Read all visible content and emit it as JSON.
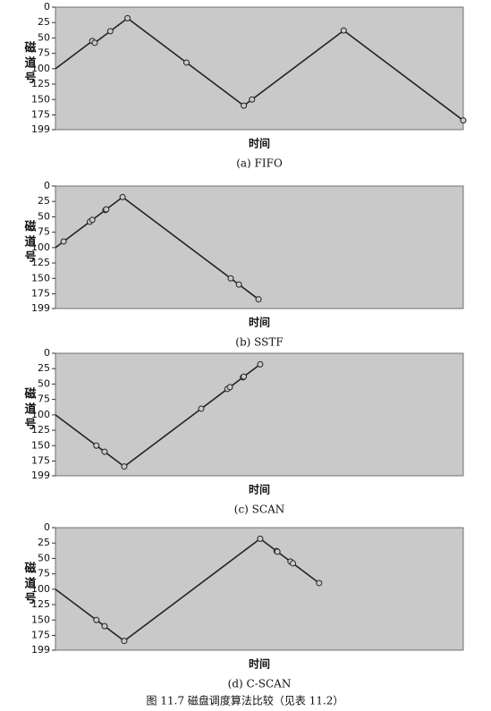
{
  "chart_data": [
    {
      "type": "line",
      "title": "(a) FIFO",
      "x_label": "时间",
      "y_label": "磁道号",
      "x": [
        0,
        45,
        48,
        67,
        88,
        160,
        230,
        240,
        352,
        498
      ],
      "values": [
        100,
        55,
        58,
        39,
        18,
        90,
        160,
        150,
        38,
        184
      ],
      "xlim": [
        0,
        498
      ],
      "ylim": [
        0,
        199
      ],
      "y_reversed": true,
      "color": "#222",
      "yticks": [
        0,
        25,
        50,
        75,
        100,
        125,
        150,
        175,
        199
      ]
    },
    {
      "type": "line",
      "title": "(b) SSTF",
      "x_label": "时间",
      "y_label": "磁道号",
      "x": [
        0,
        10,
        42,
        45,
        61,
        62,
        82,
        214,
        224,
        248
      ],
      "values": [
        100,
        90,
        58,
        55,
        39,
        38,
        18,
        150,
        160,
        184
      ],
      "xlim": [
        0,
        498
      ],
      "ylim": [
        0,
        199
      ],
      "y_reversed": true,
      "color": "#222",
      "yticks": [
        0,
        25,
        50,
        75,
        100,
        125,
        150,
        175,
        199
      ]
    },
    {
      "type": "line",
      "title": "(c) SCAN",
      "x_label": "时间",
      "y_label": "磁道号",
      "x": [
        0,
        50,
        60,
        84,
        178,
        210,
        213,
        229,
        230,
        250
      ],
      "values": [
        100,
        150,
        160,
        184,
        90,
        58,
        55,
        39,
        38,
        18
      ],
      "xlim": [
        0,
        498
      ],
      "ylim": [
        0,
        199
      ],
      "y_reversed": true,
      "color": "#222",
      "yticks": [
        0,
        25,
        50,
        75,
        100,
        125,
        150,
        175,
        199
      ]
    },
    {
      "type": "line",
      "title": "(d) C-SCAN",
      "x_label": "时间",
      "y_label": "磁道号",
      "x": [
        0,
        50,
        60,
        84,
        250,
        270,
        271,
        287,
        290,
        322
      ],
      "values": [
        100,
        150,
        160,
        184,
        18,
        38,
        39,
        55,
        58,
        90
      ],
      "xlim": [
        0,
        498
      ],
      "ylim": [
        0,
        199
      ],
      "y_reversed": true,
      "color": "#222",
      "yticks": [
        0,
        25,
        50,
        75,
        100,
        125,
        150,
        175,
        199
      ]
    }
  ],
  "caption": "图 11.7  磁盘调度算法比较（见表 11.2）"
}
